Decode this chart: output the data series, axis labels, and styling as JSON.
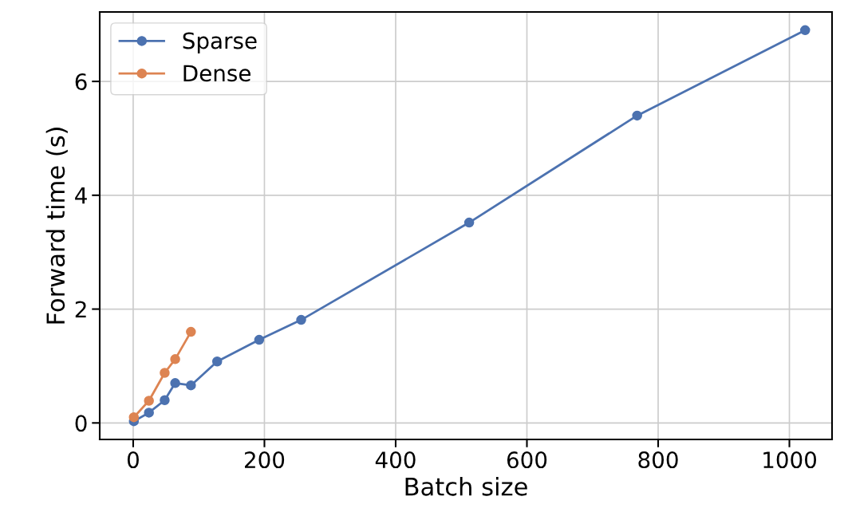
{
  "chart_data": {
    "type": "line",
    "xlabel": "Batch size",
    "ylabel": "Forward time (s)",
    "xlim": [
      -51,
      1065
    ],
    "ylim": [
      -0.29,
      7.22
    ],
    "xticks": [
      0,
      200,
      400,
      600,
      800,
      1000
    ],
    "yticks": [
      0,
      2,
      4,
      6
    ],
    "grid": true,
    "legend": "top left",
    "marker": "circle",
    "line_style": "solid",
    "series": [
      {
        "name": "Sparse",
        "color": "#4c72b0",
        "x": [
          1,
          24,
          48,
          64,
          88,
          128,
          192,
          256,
          512,
          768,
          1024
        ],
        "values": [
          0.03,
          0.18,
          0.4,
          0.7,
          0.66,
          1.08,
          1.46,
          1.81,
          3.52,
          5.4,
          6.9
        ]
      },
      {
        "name": "Dense",
        "color": "#dd8452",
        "x": [
          1,
          24,
          48,
          64,
          88
        ],
        "values": [
          0.1,
          0.39,
          0.88,
          1.12,
          1.6
        ]
      }
    ]
  }
}
